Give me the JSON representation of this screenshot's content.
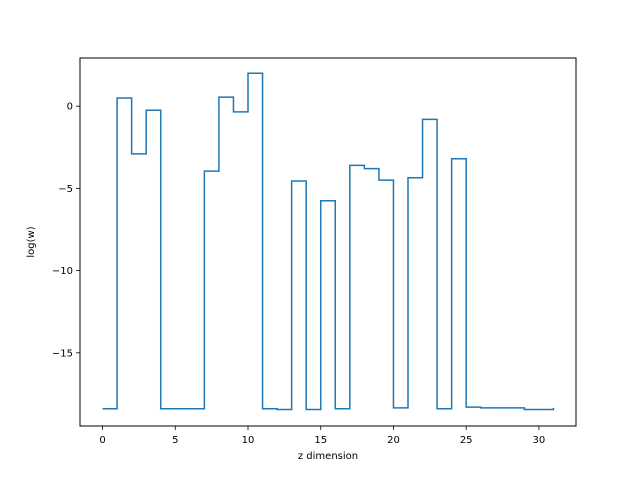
{
  "chart_data": {
    "type": "line",
    "step": "post",
    "title": "",
    "xlabel": "z dimension",
    "ylabel": "log(w)",
    "xlim": [
      -1.55,
      32.55
    ],
    "ylim": [
      -19.45,
      2.93
    ],
    "xticks": [
      0,
      5,
      10,
      15,
      20,
      25,
      30
    ],
    "yticks": [
      -15,
      -10,
      -5,
      0
    ],
    "grid": false,
    "legend": "none",
    "series": [
      {
        "color": "#1f77b4",
        "x": [
          0,
          1,
          2,
          3,
          4,
          5,
          6,
          7,
          8,
          9,
          10,
          11,
          12,
          13,
          14,
          15,
          16,
          17,
          18,
          19,
          20,
          21,
          22,
          23,
          24,
          25,
          26,
          27,
          28,
          29,
          30,
          31
        ],
        "values": [
          -18.4,
          0.5,
          -2.9,
          -0.25,
          -18.4,
          -18.4,
          -18.4,
          -3.95,
          0.55,
          -0.35,
          2.0,
          -18.4,
          -18.45,
          -4.55,
          -18.45,
          -5.75,
          -18.4,
          -3.6,
          -3.8,
          -4.5,
          -18.35,
          -4.35,
          -0.8,
          -18.4,
          -3.2,
          -18.3,
          -18.35,
          -18.35,
          -18.35,
          -18.45,
          -18.45,
          -18.35
        ]
      }
    ]
  }
}
